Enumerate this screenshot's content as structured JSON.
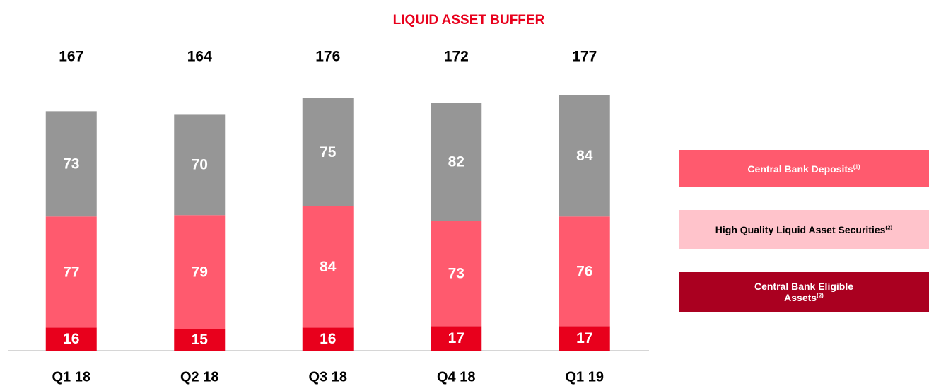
{
  "chart_data": {
    "type": "stacked_bar",
    "title": "LIQUID ASSET BUFFER",
    "categories": [
      "Q1 18",
      "Q2 18",
      "Q3 18",
      "Q4 18",
      "Q1 19"
    ],
    "series": [
      {
        "color": "#e8001c",
        "values": [
          16,
          15,
          16,
          17,
          17
        ]
      },
      {
        "color": "#ff5a6e",
        "values": [
          77,
          79,
          84,
          73,
          76
        ]
      },
      {
        "color": "#969696",
        "values": [
          73,
          70,
          75,
          82,
          84
        ]
      }
    ],
    "totals": [
      167,
      164,
      176,
      172,
      177
    ],
    "legend": [
      {
        "text": "Central Bank Deposits",
        "note": "(1)",
        "color": "#ff5a6e",
        "text_color": "#ffffff"
      },
      {
        "text": "High Quality Liquid Asset Securities",
        "note": "(2)",
        "color": "#ffc3cb",
        "text_color": "#000000"
      },
      {
        "text": "Central Bank Eligible Assets",
        "note": "(2)",
        "color": "#aa0020",
        "text_color": "#ffffff"
      }
    ]
  }
}
